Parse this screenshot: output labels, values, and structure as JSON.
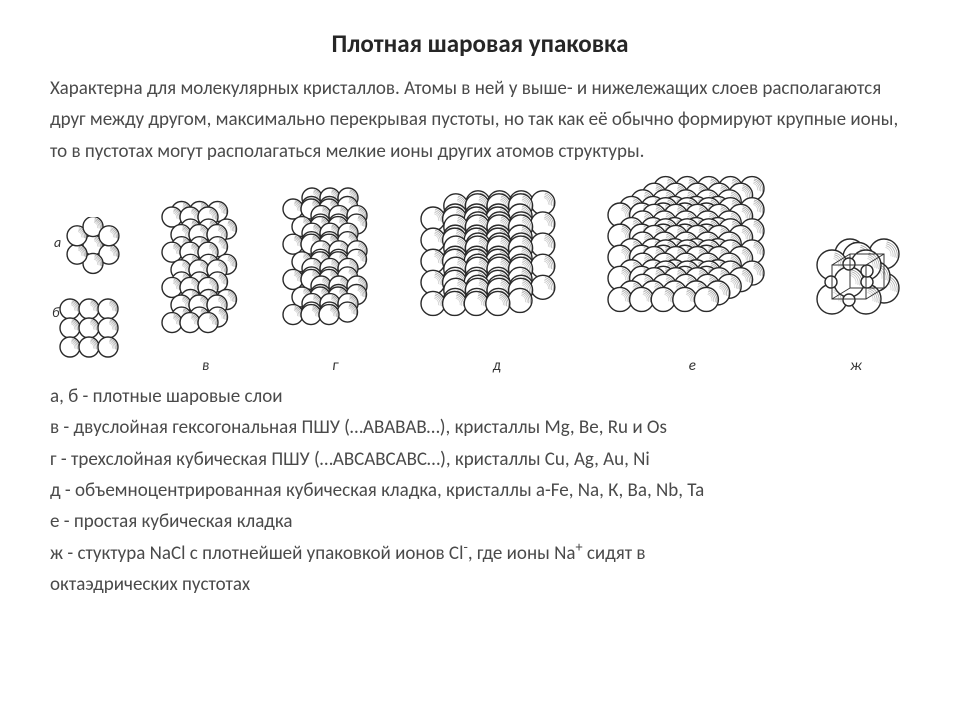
{
  "title": "Плотная шаровая упаковка",
  "description": "Характерна для молекулярных кристаллов. Атомы в ней у выше- и нижележащих слоев располагаются друг между другом, максимально перекрывая пустоты, но так как её обычно формируют крупные ионы, то в пустотах могут располагаться мелкие ионы других атомов структуры.",
  "figure_labels": {
    "a": "а",
    "b": "б",
    "v": "в",
    "g": "г",
    "d": "д",
    "e": "е",
    "zh": "ж"
  },
  "captions": {
    "c1": "а, б - плотные шаровые слои",
    "c2": "в - двуслойная гексогональная ПШУ (…АВАВАВ…), кристаллы Mg, Be, Ru и Os",
    "c3": "г - трехслойная кубическая ПШУ (…АВСАВСАВС…), кристаллы Cu, Ag, Au, Ni",
    "c4": "д - объемноцентрированная кубическая кладка, кристаллы a-Fe, Na, К, Ba, Nb, Та",
    "c5": "е - простая кубическая кладка",
    "c6_a": "ж - стуктура NaCl с плотнейшей упаковкой ионов Cl",
    "c6_b": ", где ионы Na",
    "c6_c": " сидят в",
    "c7": "октаэдрических пустотах"
  },
  "style": {
    "title_fontsize": 25,
    "body_fontsize": 19,
    "line_height": 1.65,
    "text_color": "#4a4a4a",
    "title_color": "#262626",
    "sphere_fill": "#ffffff",
    "sphere_stroke": "#2a2a2a",
    "sphere_stroke_width": 1.4,
    "shadow_fill": "#6b6b6b",
    "background": "#ffffff"
  }
}
